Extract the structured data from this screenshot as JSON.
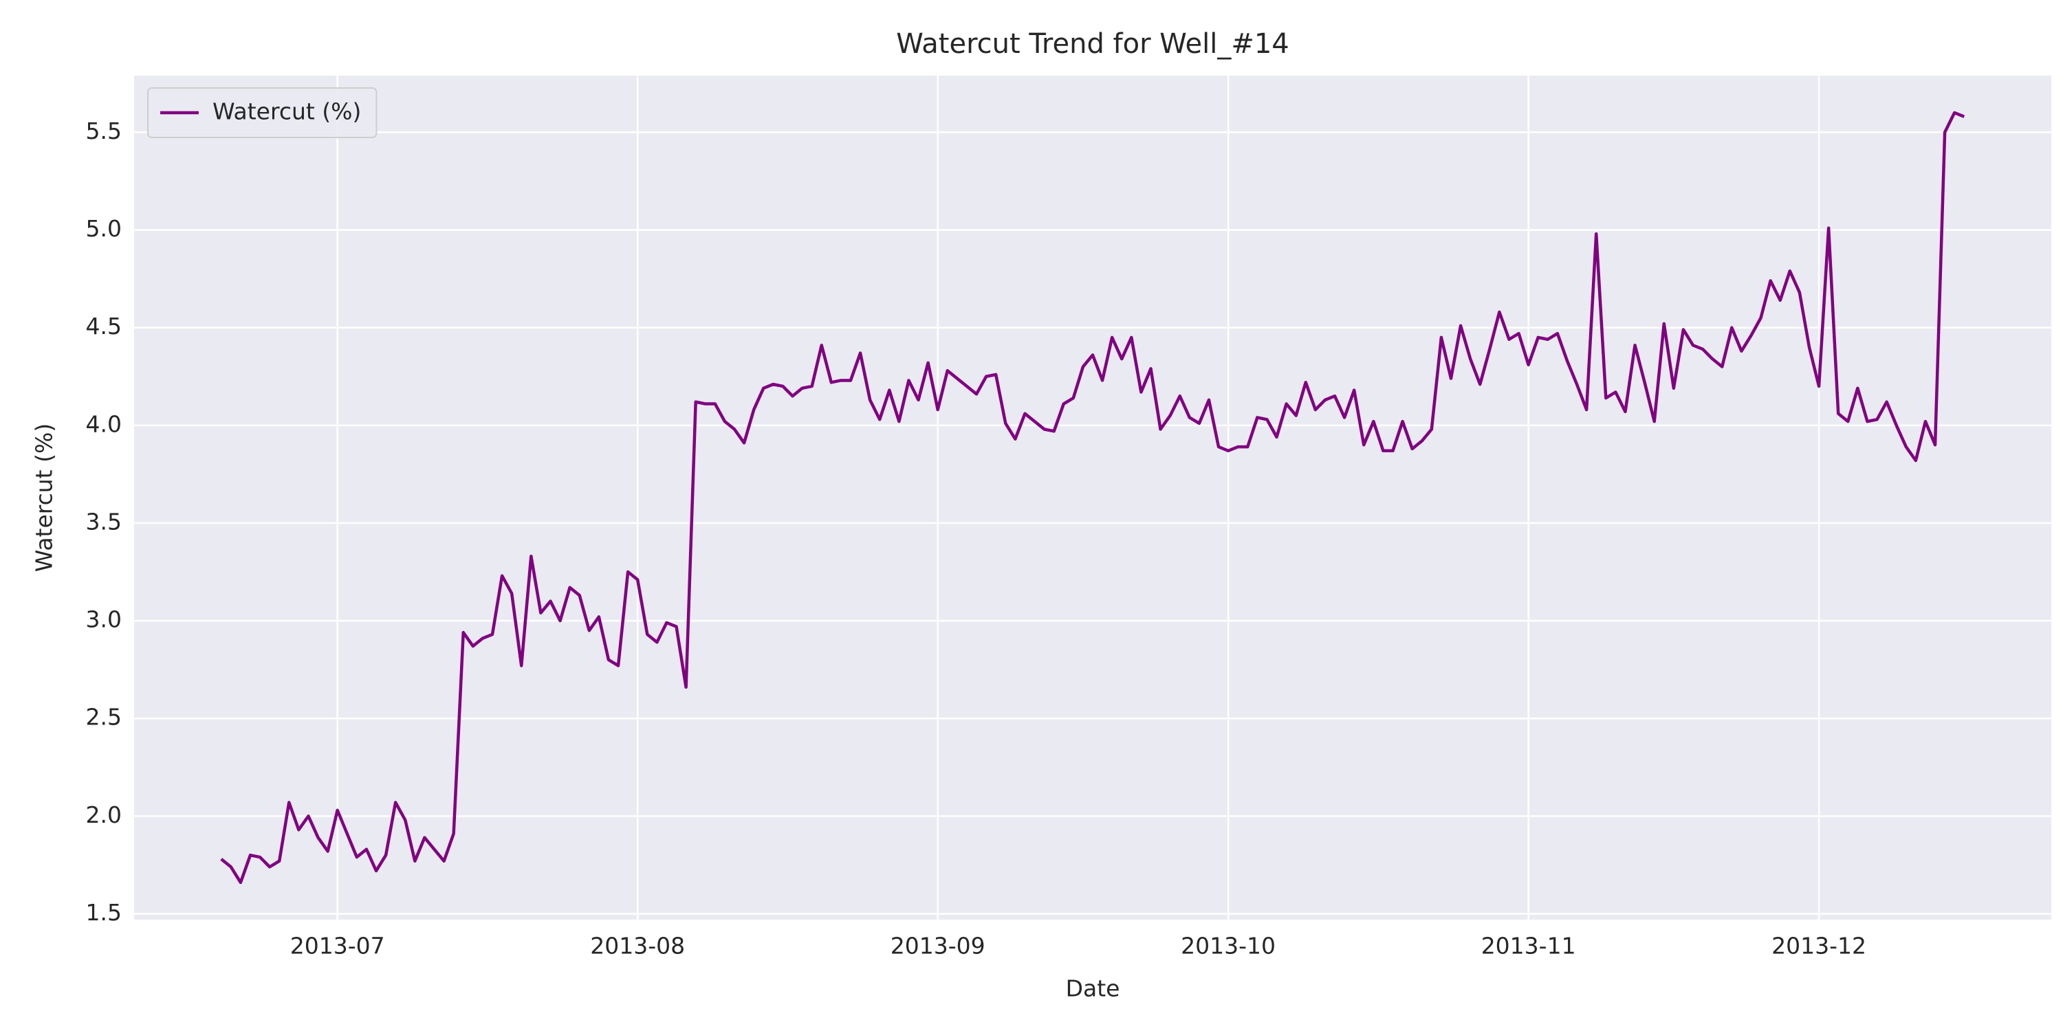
{
  "chart_data": {
    "type": "line",
    "title": "Watercut Trend for Well_#14",
    "xlabel": "Date",
    "ylabel": "Watercut (%)",
    "x": [
      "2013-06-19",
      "2013-06-20",
      "2013-06-21",
      "2013-06-22",
      "2013-06-23",
      "2013-06-24",
      "2013-06-25",
      "2013-06-26",
      "2013-06-27",
      "2013-06-28",
      "2013-06-29",
      "2013-06-30",
      "2013-07-01",
      "2013-07-02",
      "2013-07-03",
      "2013-07-04",
      "2013-07-05",
      "2013-07-06",
      "2013-07-07",
      "2013-07-08",
      "2013-07-09",
      "2013-07-10",
      "2013-07-11",
      "2013-07-12",
      "2013-07-13",
      "2013-07-14",
      "2013-07-15",
      "2013-07-16",
      "2013-07-17",
      "2013-07-18",
      "2013-07-19",
      "2013-07-20",
      "2013-07-21",
      "2013-07-22",
      "2013-07-23",
      "2013-07-24",
      "2013-07-25",
      "2013-07-26",
      "2013-07-27",
      "2013-07-28",
      "2013-07-29",
      "2013-07-30",
      "2013-07-31",
      "2013-08-01",
      "2013-08-02",
      "2013-08-03",
      "2013-08-04",
      "2013-08-05",
      "2013-08-06",
      "2013-08-07",
      "2013-08-08",
      "2013-08-09",
      "2013-08-10",
      "2013-08-11",
      "2013-08-12",
      "2013-08-13",
      "2013-08-14",
      "2013-08-15",
      "2013-08-16",
      "2013-08-17",
      "2013-08-18",
      "2013-08-19",
      "2013-08-20",
      "2013-08-21",
      "2013-08-22",
      "2013-08-23",
      "2013-08-24",
      "2013-08-25",
      "2013-08-26",
      "2013-08-27",
      "2013-08-28",
      "2013-08-29",
      "2013-08-30",
      "2013-08-31",
      "2013-09-01",
      "2013-09-02",
      "2013-09-03",
      "2013-09-04",
      "2013-09-05",
      "2013-09-06",
      "2013-09-07",
      "2013-09-08",
      "2013-09-09",
      "2013-09-10",
      "2013-09-11",
      "2013-09-12",
      "2013-09-13",
      "2013-09-14",
      "2013-09-15",
      "2013-09-16",
      "2013-09-17",
      "2013-09-18",
      "2013-09-19",
      "2013-09-20",
      "2013-09-21",
      "2013-09-22",
      "2013-09-23",
      "2013-09-24",
      "2013-09-25",
      "2013-09-26",
      "2013-09-27",
      "2013-09-28",
      "2013-09-29",
      "2013-09-30",
      "2013-10-01",
      "2013-10-02",
      "2013-10-03",
      "2013-10-04",
      "2013-10-05",
      "2013-10-06",
      "2013-10-07",
      "2013-10-08",
      "2013-10-09",
      "2013-10-10",
      "2013-10-11",
      "2013-10-12",
      "2013-10-13",
      "2013-10-14",
      "2013-10-15",
      "2013-10-16",
      "2013-10-17",
      "2013-10-18",
      "2013-10-19",
      "2013-10-20",
      "2013-10-21",
      "2013-10-22",
      "2013-10-23",
      "2013-10-24",
      "2013-10-25",
      "2013-10-26",
      "2013-10-27",
      "2013-10-28",
      "2013-10-29",
      "2013-10-30",
      "2013-10-31",
      "2013-11-01",
      "2013-11-02",
      "2013-11-03",
      "2013-11-04",
      "2013-11-05",
      "2013-11-06",
      "2013-11-07",
      "2013-11-08",
      "2013-11-09",
      "2013-11-10",
      "2013-11-11",
      "2013-11-12",
      "2013-11-13",
      "2013-11-14",
      "2013-11-15",
      "2013-11-16",
      "2013-11-17",
      "2013-11-18",
      "2013-11-19",
      "2013-11-20",
      "2013-11-21",
      "2013-11-22",
      "2013-11-23",
      "2013-11-24",
      "2013-11-25",
      "2013-11-26",
      "2013-11-27",
      "2013-11-28",
      "2013-11-29",
      "2013-11-30",
      "2013-12-01",
      "2013-12-02",
      "2013-12-03",
      "2013-12-04",
      "2013-12-05",
      "2013-12-06",
      "2013-12-07",
      "2013-12-08",
      "2013-12-09",
      "2013-12-10",
      "2013-12-11",
      "2013-12-12",
      "2013-12-13",
      "2013-12-14",
      "2013-12-15",
      "2013-12-16"
    ],
    "series": [
      {
        "name": "Watercut (%)",
        "color": "#800080",
        "values": [
          1.78,
          1.74,
          1.66,
          1.8,
          1.79,
          1.74,
          1.77,
          2.07,
          1.93,
          2.0,
          1.89,
          1.82,
          2.03,
          1.91,
          1.79,
          1.83,
          1.72,
          1.8,
          2.07,
          1.98,
          1.77,
          1.89,
          1.83,
          1.77,
          1.91,
          2.94,
          2.87,
          2.91,
          2.93,
          3.23,
          3.14,
          2.77,
          3.33,
          3.04,
          3.1,
          3.0,
          3.17,
          3.13,
          2.95,
          3.02,
          2.8,
          2.77,
          3.25,
          3.21,
          2.93,
          2.89,
          2.99,
          2.97,
          2.66,
          4.12,
          4.11,
          4.11,
          4.02,
          3.98,
          3.91,
          4.08,
          4.19,
          4.21,
          4.2,
          4.15,
          4.19,
          4.2,
          4.41,
          4.22,
          4.23,
          4.23,
          4.37,
          4.13,
          4.03,
          4.18,
          4.02,
          4.23,
          4.13,
          4.32,
          4.08,
          4.28,
          4.24,
          4.2,
          4.16,
          4.25,
          4.26,
          4.01,
          3.93,
          4.06,
          4.02,
          3.98,
          3.97,
          4.11,
          4.14,
          4.3,
          4.36,
          4.23,
          4.45,
          4.34,
          4.45,
          4.17,
          4.29,
          3.98,
          4.05,
          4.15,
          4.04,
          4.01,
          4.13,
          3.89,
          3.87,
          3.89,
          3.89,
          4.04,
          4.03,
          3.94,
          4.11,
          4.05,
          4.22,
          4.08,
          4.13,
          4.15,
          4.04,
          4.18,
          3.9,
          4.02,
          3.87,
          3.87,
          4.02,
          3.88,
          3.92,
          3.98,
          4.45,
          4.24,
          4.51,
          4.34,
          4.21,
          4.39,
          4.58,
          4.44,
          4.47,
          4.31,
          4.45,
          4.44,
          4.47,
          4.33,
          4.21,
          4.08,
          4.98,
          4.14,
          4.17,
          4.07,
          4.41,
          4.22,
          4.02,
          4.52,
          4.19,
          4.49,
          4.41,
          4.39,
          4.34,
          4.3,
          4.5,
          4.38,
          4.46,
          4.55,
          4.74,
          4.64,
          4.79,
          4.68,
          4.4,
          4.2,
          5.01,
          4.06,
          4.02,
          4.19,
          4.02,
          4.03,
          4.12,
          4.0,
          3.89,
          3.82,
          4.02,
          3.9,
          5.5,
          5.6,
          5.58
        ]
      }
    ],
    "xlim": [
      "2013-06-10",
      "2013-12-25"
    ],
    "xticks": [
      {
        "value": "2013-07-01",
        "label": "2013-07"
      },
      {
        "value": "2013-08-01",
        "label": "2013-08"
      },
      {
        "value": "2013-09-01",
        "label": "2013-09"
      },
      {
        "value": "2013-10-01",
        "label": "2013-10"
      },
      {
        "value": "2013-11-01",
        "label": "2013-11"
      },
      {
        "value": "2013-12-01",
        "label": "2013-12"
      }
    ],
    "ylim": [
      1.47,
      5.79
    ],
    "yticks": [
      1.5,
      {
        "value": 2,
        "label": "2.0"
      },
      2.5,
      {
        "value": 3,
        "label": "3.0"
      },
      3.5,
      {
        "value": 4,
        "label": "4.0"
      },
      4.5,
      {
        "value": 5,
        "label": "5.0"
      },
      5.5
    ],
    "grid": true,
    "legend": "upper left"
  }
}
